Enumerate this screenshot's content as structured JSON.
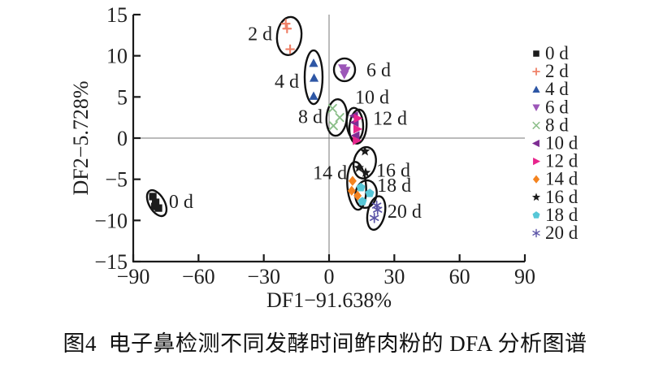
{
  "figure_caption": "图4  电子鼻检测不同发酵时间鲊肉粉的 DFA 分析图谱",
  "chart_data": {
    "type": "scatter",
    "xlabel": "DF1−91.638%",
    "ylabel": "DF2−5.728%",
    "xlim": [
      -90,
      90
    ],
    "ylim": [
      -15,
      15
    ],
    "xticks": [
      -90,
      -60,
      -30,
      0,
      30,
      60,
      90
    ],
    "yticks": [
      -15,
      -10,
      -5,
      0,
      5,
      10,
      15
    ],
    "xtick_labels": [
      "−90",
      "−60",
      "−30",
      "0",
      "30",
      "60",
      "90"
    ],
    "ytick_labels": [
      "−15",
      "−10",
      "−5",
      "0",
      "5",
      "10",
      "15"
    ],
    "grid": false,
    "zero_lines": true,
    "legend_position": "right-outside",
    "series": [
      {
        "name": "0 d",
        "marker": "square",
        "color": "#1c1c1c",
        "points": [
          [
            -81.0,
            -7.1
          ],
          [
            -79.7,
            -7.8
          ],
          [
            -80.1,
            -8.3
          ],
          [
            -78.4,
            -8.5
          ]
        ]
      },
      {
        "name": "2 d",
        "marker": "plus",
        "color": "#ef8168",
        "points": [
          [
            -19.9,
            13.9
          ],
          [
            -19.3,
            13.3
          ],
          [
            -17.9,
            10.8
          ]
        ]
      },
      {
        "name": "4 d",
        "marker": "triangle-up",
        "color": "#2d56a5",
        "points": [
          [
            -7.1,
            9.1
          ],
          [
            -6.9,
            7.3
          ],
          [
            -7.1,
            5.1
          ]
        ]
      },
      {
        "name": "6 d",
        "marker": "triangle-down",
        "color": "#9c56b8",
        "points": [
          [
            6.2,
            8.5
          ],
          [
            7.8,
            8.2
          ],
          [
            7.0,
            7.7
          ]
        ]
      },
      {
        "name": "8 d",
        "marker": "x",
        "color": "#8cbf8a",
        "points": [
          [
            1.6,
            3.6
          ],
          [
            4.9,
            2.5
          ],
          [
            2.0,
            1.5
          ]
        ]
      },
      {
        "name": "10 d",
        "marker": "triangle-left",
        "color": "#7d2d93",
        "points": [
          [
            11.5,
            2.7
          ],
          [
            11.8,
            1.9
          ],
          [
            12.2,
            0.3
          ]
        ]
      },
      {
        "name": "12 d",
        "marker": "triangle-right",
        "color": "#e8248c",
        "points": [
          [
            13.2,
            2.4
          ],
          [
            13.0,
            1.1
          ],
          [
            12.7,
            -0.3
          ]
        ]
      },
      {
        "name": "14 d",
        "marker": "diamond",
        "color": "#f4831f",
        "points": [
          [
            10.8,
            -5.2
          ],
          [
            10.4,
            -6.4
          ],
          [
            13.1,
            -7.0
          ]
        ]
      },
      {
        "name": "16 d",
        "marker": "star",
        "color": "#1c1c1c",
        "points": [
          [
            16.5,
            -1.6
          ],
          [
            13.7,
            -3.6
          ],
          [
            16.8,
            -4.2
          ]
        ]
      },
      {
        "name": "18 d",
        "marker": "pentagon",
        "color": "#57c7d7",
        "points": [
          [
            14.6,
            -6.0
          ],
          [
            18.7,
            -6.7
          ],
          [
            15.3,
            -7.7
          ]
        ]
      },
      {
        "name": "20 d",
        "marker": "asterisk",
        "color": "#5c55a8",
        "points": [
          [
            21.9,
            -8.2
          ],
          [
            22.3,
            -8.7
          ],
          [
            20.8,
            -9.7
          ]
        ]
      }
    ],
    "cluster_ellipses": [
      {
        "label": "0 d",
        "cx": -79.2,
        "cy": -7.9,
        "rx": 9.5,
        "ry": 17.5,
        "angle": -30
      },
      {
        "label": "2 d",
        "cx": -18.3,
        "cy": 12.4,
        "rx": 15,
        "ry": 23.5,
        "angle": 6
      },
      {
        "label": "4 d",
        "cx": -7.1,
        "cy": 7.4,
        "rx": 11,
        "ry": 33,
        "angle": 0
      },
      {
        "label": "6 d",
        "cx": 7.1,
        "cy": 8.3,
        "rx": 13,
        "ry": 14,
        "angle": 0
      },
      {
        "label": "8 d",
        "cx": 3.5,
        "cy": 2.5,
        "rx": 12.5,
        "ry": 22.5,
        "angle": 5
      },
      {
        "label": "10 d",
        "cx": 11.9,
        "cy": 1.7,
        "rx": 10,
        "ry": 20,
        "angle": -5
      },
      {
        "label": "12 d",
        "cx": 13.3,
        "cy": 1.4,
        "rx": 10.5,
        "ry": 21,
        "angle": 5
      },
      {
        "label": "14 d",
        "cx": 12.7,
        "cy": -5.8,
        "rx": 11.5,
        "ry": 29.5,
        "angle": -4
      },
      {
        "label": "16 d",
        "cx": 16.4,
        "cy": -3.0,
        "rx": 13.5,
        "ry": 19.5,
        "angle": 12
      },
      {
        "label": "18 d",
        "cx": 17.0,
        "cy": -6.8,
        "rx": 13,
        "ry": 17,
        "angle": 10
      },
      {
        "label": "20 d",
        "cx": 21.7,
        "cy": -9.1,
        "rx": 10.5,
        "ry": 21,
        "angle": 12
      }
    ],
    "cluster_labels": [
      {
        "text": "0 d",
        "x": -68.0,
        "y": -7.7
      },
      {
        "text": "2 d",
        "x": -31.7,
        "y": 12.7
      },
      {
        "text": "4 d",
        "x": -19.4,
        "y": 6.9
      },
      {
        "text": "6 d",
        "x": 22.8,
        "y": 8.3
      },
      {
        "text": "8 d",
        "x": -8.6,
        "y": 2.6
      },
      {
        "text": "10 d",
        "x": 19.8,
        "y": 5.0
      },
      {
        "text": "12 d",
        "x": 28.0,
        "y": 2.4
      },
      {
        "text": "14 d",
        "x": 0.4,
        "y": -4.2
      },
      {
        "text": "16 d",
        "x": 29.5,
        "y": -3.9
      },
      {
        "text": "18 d",
        "x": 29.9,
        "y": -5.7
      },
      {
        "text": "20 d",
        "x": 34.7,
        "y": -8.9
      }
    ],
    "colors": {
      "spine": "#1a1a1a",
      "zero_line": "#777777",
      "ellipse": "#111111",
      "text": "#1f1f1f"
    }
  }
}
